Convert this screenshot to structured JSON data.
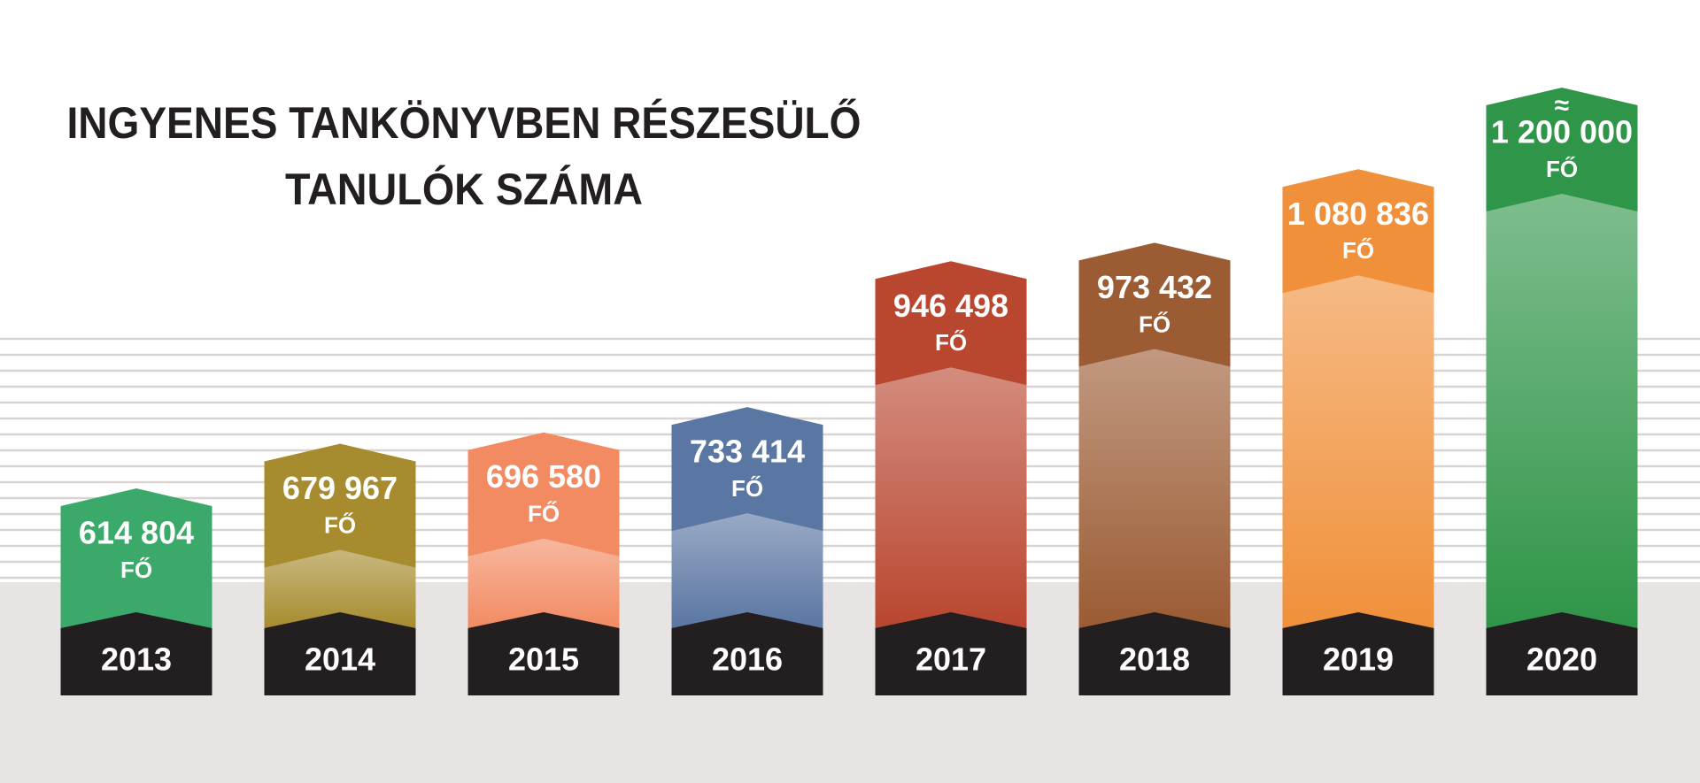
{
  "chart_data": {
    "type": "bar",
    "title": [
      "INGYENES TANKÖNYVBEN RÉSZESÜLŐ",
      "TANULÓK SZÁMA"
    ],
    "categories": [
      "2013",
      "2014",
      "2015",
      "2016",
      "2017",
      "2018",
      "2019",
      "2020"
    ],
    "values": [
      614804,
      679967,
      696580,
      733414,
      946498,
      973432,
      1080836,
      1200000
    ],
    "value_labels": [
      "614 804",
      "679 967",
      "696 580",
      "733 414",
      "946 498",
      "973 432",
      "1 080 836",
      "1 200 000"
    ],
    "unit": "FŐ",
    "annotation": "≈",
    "colors": [
      "#3ba96a",
      "#a68c2e",
      "#f28b62",
      "#5a76a2",
      "#b9462f",
      "#9b5b33",
      "#f0903a",
      "#2f9548"
    ]
  }
}
